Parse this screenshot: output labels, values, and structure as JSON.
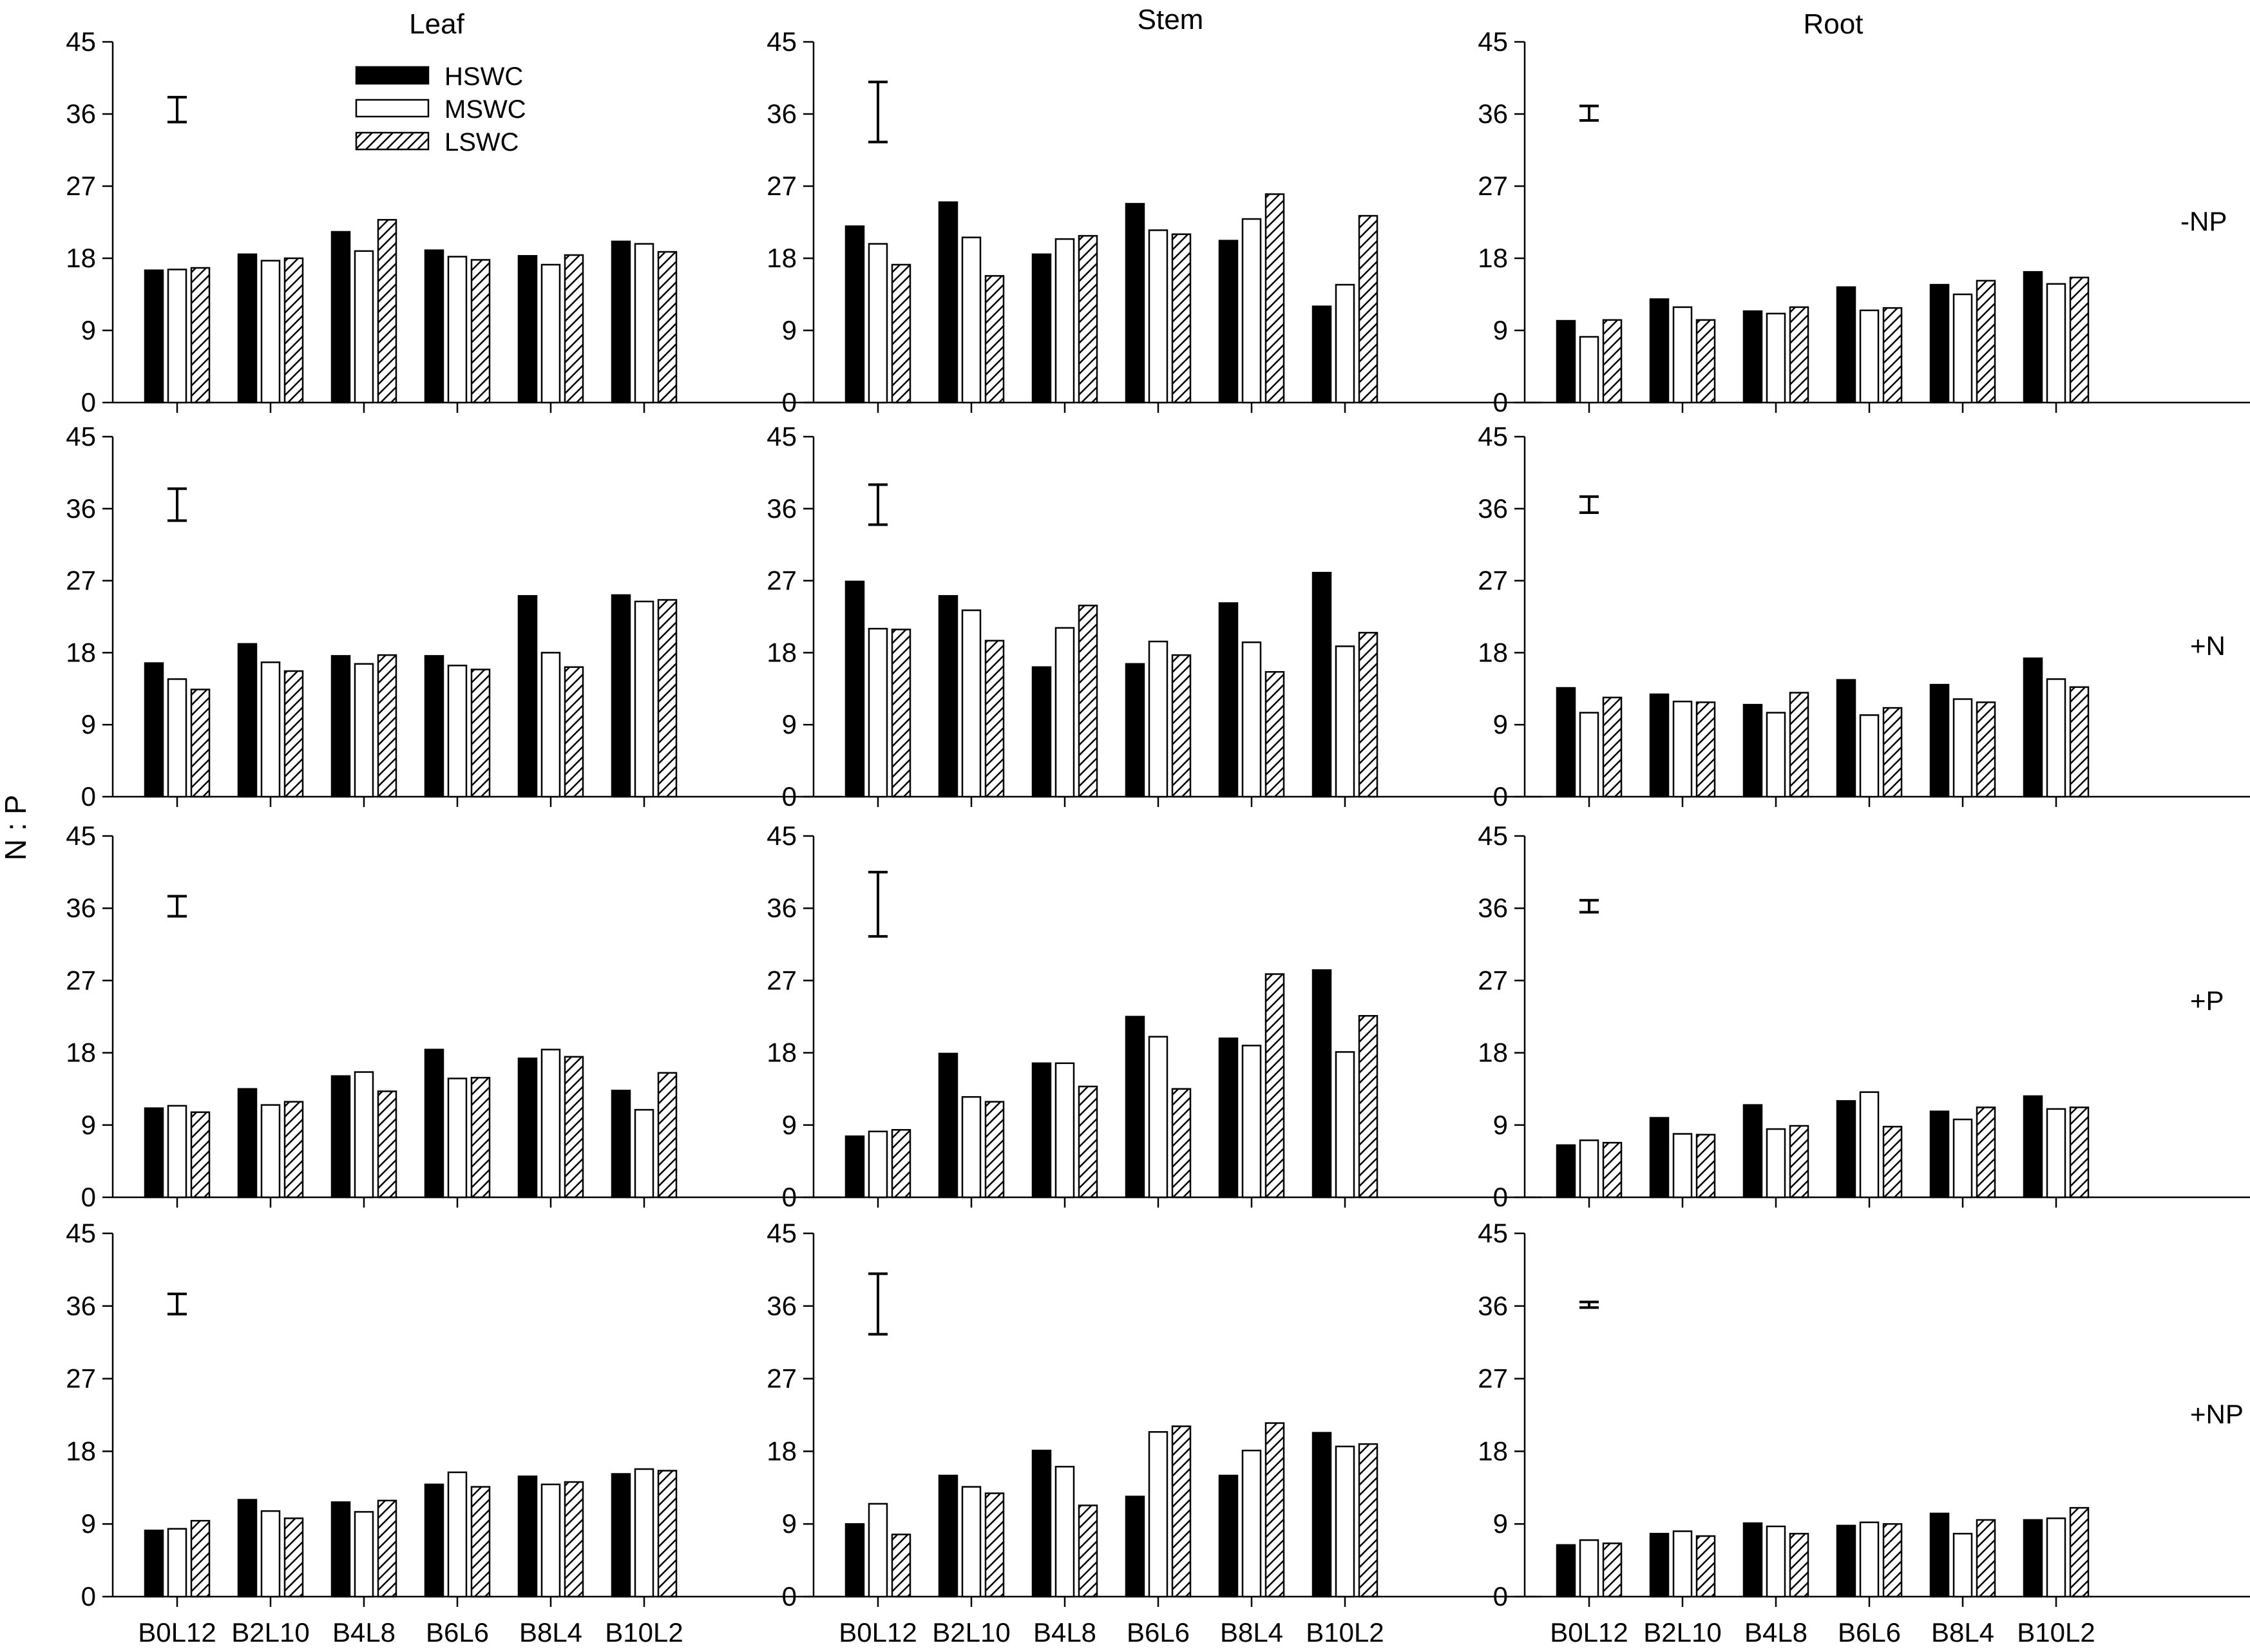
{
  "figure": {
    "ylabel": "N : P",
    "column_titles": [
      "Leaf",
      "Stem",
      "Root"
    ],
    "row_labels": [
      "-NP",
      "+N",
      "+P",
      "+NP"
    ],
    "colors": {
      "foreground": "#000000",
      "background": "#ffffff"
    },
    "legend": {
      "entries": [
        {
          "label": "HSWC",
          "fill": "solid"
        },
        {
          "label": "MSWC",
          "fill": "open"
        },
        {
          "label": "LSWC",
          "fill": "hatched"
        }
      ]
    }
  },
  "chart_data": {
    "type": "bar",
    "categories": [
      "B0L12",
      "B2L10",
      "B4L8",
      "B6L6",
      "B8L4",
      "B10L2"
    ],
    "series_names": [
      "HSWC",
      "MSWC",
      "LSWC"
    ],
    "ylim": [
      0,
      45
    ],
    "yticks": [
      0,
      9,
      18,
      27,
      36,
      45
    ],
    "panels": [
      {
        "row": "-NP",
        "col": "Leaf",
        "error_bar": [
          35,
          38.1
        ],
        "values": [
          [
            16.5,
            18.5,
            21.3,
            19.0,
            18.3,
            20.1
          ],
          [
            16.6,
            17.7,
            18.9,
            18.2,
            17.2,
            19.8
          ],
          [
            16.8,
            18.0,
            22.8,
            17.8,
            18.4,
            18.8
          ]
        ]
      },
      {
        "row": "-NP",
        "col": "Stem",
        "error_bar": [
          32.5,
          40.0
        ],
        "values": [
          [
            22.0,
            25.0,
            18.5,
            24.8,
            20.2,
            12.0
          ],
          [
            19.8,
            20.6,
            20.4,
            21.5,
            22.9,
            14.7
          ],
          [
            17.2,
            15.8,
            20.8,
            21.0,
            26.0,
            23.3
          ]
        ]
      },
      {
        "row": "-NP",
        "col": "Root",
        "error_bar": [
          35.2,
          37.0
        ],
        "values": [
          [
            10.2,
            12.9,
            11.4,
            14.4,
            14.7,
            16.3
          ],
          [
            8.2,
            11.9,
            11.1,
            11.5,
            13.5,
            14.8
          ],
          [
            10.3,
            10.3,
            11.9,
            11.8,
            15.2,
            15.6
          ]
        ]
      },
      {
        "row": "+N",
        "col": "Leaf",
        "error_bar": [
          34.5,
          38.5
        ],
        "values": [
          [
            16.7,
            19.1,
            17.6,
            17.6,
            25.1,
            25.2
          ],
          [
            14.7,
            16.8,
            16.6,
            16.4,
            18.0,
            24.4
          ],
          [
            13.4,
            15.7,
            17.7,
            15.9,
            16.2,
            24.6
          ]
        ]
      },
      {
        "row": "+N",
        "col": "Stem",
        "error_bar": [
          34,
          39.0
        ],
        "values": [
          [
            26.9,
            25.1,
            16.2,
            16.6,
            24.2,
            28.0
          ],
          [
            21.0,
            23.3,
            21.1,
            19.4,
            19.3,
            18.8
          ],
          [
            20.9,
            19.5,
            23.9,
            17.7,
            15.6,
            20.5
          ]
        ]
      },
      {
        "row": "+N",
        "col": "Root",
        "error_bar": [
          35.5,
          37.5
        ],
        "values": [
          [
            13.6,
            12.8,
            11.5,
            14.6,
            14.0,
            17.3
          ],
          [
            10.5,
            11.9,
            10.5,
            10.2,
            12.2,
            14.7
          ],
          [
            12.4,
            11.8,
            13.0,
            11.1,
            11.8,
            13.7
          ]
        ]
      },
      {
        "row": "+P",
        "col": "Leaf",
        "error_bar": [
          35,
          37.5
        ],
        "values": [
          [
            11.1,
            13.5,
            15.1,
            18.4,
            17.3,
            13.3
          ],
          [
            11.4,
            11.5,
            15.6,
            14.8,
            18.4,
            10.9
          ],
          [
            10.6,
            11.9,
            13.2,
            14.9,
            17.5,
            15.5
          ]
        ]
      },
      {
        "row": "+P",
        "col": "Stem",
        "error_bar": [
          32.5,
          40.5
        ],
        "values": [
          [
            7.6,
            17.9,
            16.7,
            22.5,
            19.8,
            28.3
          ],
          [
            8.2,
            12.5,
            16.7,
            20.0,
            18.9,
            18.1
          ],
          [
            8.4,
            11.9,
            13.8,
            13.5,
            27.8,
            22.6
          ]
        ]
      },
      {
        "row": "+P",
        "col": "Root",
        "error_bar": [
          35.5,
          37.0
        ],
        "values": [
          [
            6.5,
            9.9,
            11.5,
            12.0,
            10.7,
            12.6
          ],
          [
            7.1,
            7.9,
            8.5,
            13.1,
            9.7,
            11.0
          ],
          [
            6.8,
            7.8,
            8.9,
            8.8,
            11.2,
            11.2
          ]
        ]
      },
      {
        "row": "+NP",
        "col": "Leaf",
        "error_bar": [
          35,
          37.5
        ],
        "values": [
          [
            8.2,
            12.0,
            11.7,
            13.9,
            14.9,
            15.2
          ],
          [
            8.4,
            10.6,
            10.5,
            15.4,
            13.9,
            15.8
          ],
          [
            9.4,
            9.7,
            11.9,
            13.6,
            14.2,
            15.6
          ]
        ]
      },
      {
        "row": "+NP",
        "col": "Stem",
        "error_bar": [
          32.5,
          40.0
        ],
        "values": [
          [
            9.0,
            15.0,
            18.1,
            12.4,
            15.0,
            20.3
          ],
          [
            11.5,
            13.6,
            16.1,
            20.4,
            18.1,
            18.6
          ],
          [
            7.7,
            12.8,
            11.3,
            21.1,
            21.5,
            18.9
          ]
        ]
      },
      {
        "row": "+NP",
        "col": "Root",
        "error_bar": [
          35.8,
          36.5
        ],
        "values": [
          [
            6.4,
            7.8,
            9.1,
            8.8,
            10.3,
            9.5
          ],
          [
            7.0,
            8.1,
            8.7,
            9.2,
            7.8,
            9.7
          ],
          [
            6.6,
            7.5,
            7.8,
            9.0,
            9.5,
            11.0
          ]
        ]
      }
    ]
  }
}
